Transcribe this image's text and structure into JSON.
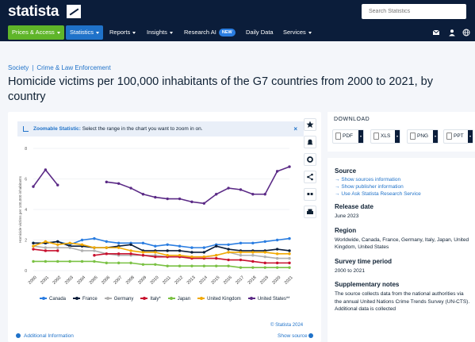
{
  "header": {
    "logo": "statista",
    "search_placeholder": "Search Statistics"
  },
  "nav": {
    "items": [
      {
        "label": "Prices & Access",
        "dropdown": true
      },
      {
        "label": "Statistics",
        "dropdown": true
      },
      {
        "label": "Reports",
        "dropdown": true
      },
      {
        "label": "Insights",
        "dropdown": true
      },
      {
        "label": "Research AI",
        "badge": "NEW"
      },
      {
        "label": "Daily Data"
      },
      {
        "label": "Services",
        "dropdown": true
      }
    ],
    "icons": [
      "mail-icon",
      "user-icon",
      "globe-icon"
    ]
  },
  "breadcrumb": [
    "Society",
    "Crime & Law Enforcement"
  ],
  "page_title": "Homicide victims per 100,000 inhabitants of the G7 countries from 2000 to 2021, by country",
  "zoom_bar": {
    "label": "Zoomable Statistic:",
    "text": "Select the range in the chart you want to zoom in on."
  },
  "chart_data": {
    "type": "line",
    "x": [
      "2000",
      "2001",
      "2002",
      "2003",
      "2004",
      "2005",
      "2006",
      "2007",
      "2008",
      "2009",
      "2010",
      "2011",
      "2012",
      "2013",
      "2014",
      "2015",
      "2016",
      "2017",
      "2018",
      "2019",
      "2020",
      "2021"
    ],
    "ylabel": "Homicide victims per 100,000 inhabitants",
    "ylim": [
      0,
      8
    ],
    "yticks": [
      0,
      2,
      4,
      6,
      8
    ],
    "grid": true,
    "legend": "bottom",
    "series": [
      {
        "name": "Canada",
        "color": "#2a7de1",
        "values": [
          1.8,
          1.8,
          1.9,
          1.7,
          2.0,
          2.1,
          1.9,
          1.8,
          1.8,
          1.8,
          1.6,
          1.7,
          1.6,
          1.5,
          1.5,
          1.7,
          1.7,
          1.8,
          1.8,
          1.9,
          2.0,
          2.1
        ]
      },
      {
        "name": "France",
        "color": "#0b1d3a",
        "values": [
          1.8,
          1.8,
          1.9,
          1.6,
          1.6,
          1.5,
          1.5,
          1.6,
          1.7,
          1.3,
          1.3,
          1.3,
          1.3,
          1.2,
          1.2,
          1.6,
          1.4,
          1.3,
          1.3,
          1.3,
          1.4,
          1.3
        ]
      },
      {
        "name": "Germany",
        "color": "#b0b0b0",
        "values": [
          1.6,
          1.5,
          1.5,
          1.5,
          1.3,
          1.3,
          1.1,
          1.0,
          1.0,
          1.0,
          1.0,
          0.9,
          0.9,
          0.9,
          0.9,
          1.0,
          1.2,
          1.0,
          1.0,
          0.9,
          0.8,
          0.8
        ]
      },
      {
        "name": "Italy*",
        "color": "#c8102e",
        "values": [
          1.4,
          1.3,
          1.3,
          null,
          null,
          1.0,
          1.1,
          1.1,
          1.1,
          1.0,
          0.9,
          0.9,
          0.9,
          0.8,
          0.8,
          0.8,
          0.7,
          0.7,
          0.6,
          0.5,
          0.5,
          0.5
        ]
      },
      {
        "name": "Japan",
        "color": "#7ac143",
        "values": [
          0.6,
          0.6,
          0.6,
          0.6,
          0.6,
          0.6,
          0.5,
          0.5,
          0.5,
          0.4,
          0.4,
          0.3,
          0.3,
          0.3,
          0.3,
          0.3,
          0.3,
          0.2,
          0.2,
          0.2,
          0.2,
          0.2
        ]
      },
      {
        "name": "United Kingdom",
        "color": "#f2a900",
        "values": [
          1.6,
          1.9,
          1.7,
          1.8,
          1.7,
          1.5,
          1.5,
          1.5,
          1.3,
          1.2,
          1.2,
          1.0,
          1.0,
          0.9,
          0.9,
          1.0,
          1.2,
          1.2,
          1.2,
          1.2,
          1.1,
          1.1
        ]
      },
      {
        "name": "United States**",
        "color": "#5b2a86",
        "values": [
          5.5,
          6.6,
          5.6,
          null,
          null,
          null,
          5.8,
          5.7,
          5.4,
          5.0,
          4.8,
          4.7,
          4.7,
          4.5,
          4.4,
          5.0,
          5.4,
          5.3,
          5.0,
          5.0,
          6.5,
          6.8
        ]
      }
    ]
  },
  "chart_footer": {
    "copyright": "© Statista 2024",
    "additional_info": "Additional Information",
    "show_source": "Show source"
  },
  "download": {
    "title": "DOWNLOAD",
    "formats": [
      "PDF",
      "XLS",
      "PNG",
      "PPT"
    ]
  },
  "details": {
    "source_title": "Source",
    "source_links": [
      "Show sources information",
      "Show publisher information",
      "Use Ask Statista Research Service"
    ],
    "release_title": "Release date",
    "release_value": "June 2023",
    "region_title": "Region",
    "region_value": "Worldwide, Canada, France, Germany, Italy, Japan, United Kingdom, United States",
    "period_title": "Survey time period",
    "period_value": "2000 to 2021",
    "notes_title": "Supplementary notes",
    "notes_value": "The source collects data from the national authorities via the annual United Nations Crime Trends Survey (UN-CTS). Additional data is collected"
  }
}
